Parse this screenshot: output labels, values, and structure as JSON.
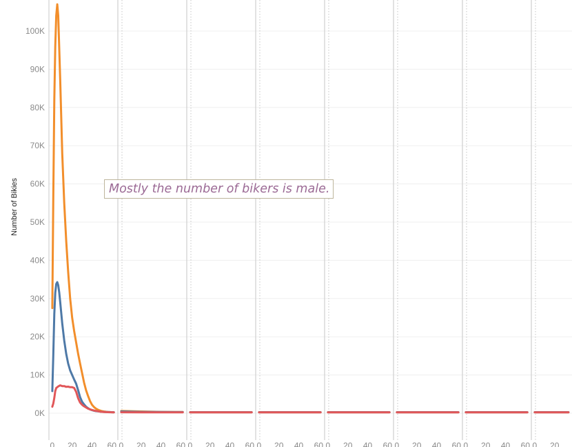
{
  "chart_data": {
    "type": "line",
    "ylabel": "Number of Bikies",
    "xlabel": "",
    "ylim": [
      -9000,
      107000
    ],
    "y_ticks": [
      {
        "value": 0,
        "label": "0K"
      },
      {
        "value": 10000,
        "label": "10K"
      },
      {
        "value": 20000,
        "label": "20K"
      },
      {
        "value": 30000,
        "label": "30K"
      },
      {
        "value": 40000,
        "label": "40K"
      },
      {
        "value": 50000,
        "label": "50K"
      },
      {
        "value": 60000,
        "label": "60K"
      },
      {
        "value": 70000,
        "label": "70K"
      },
      {
        "value": 80000,
        "label": "80K"
      },
      {
        "value": 90000,
        "label": "90K"
      },
      {
        "value": 100000,
        "label": "100K"
      }
    ],
    "x_ticks": [
      {
        "value": 0,
        "label": "0"
      },
      {
        "value": 20,
        "label": "20"
      },
      {
        "value": 40,
        "label": "40"
      },
      {
        "value": 60,
        "label": "60"
      }
    ],
    "panel_xlim": [
      -2,
      66
    ],
    "panel_count": 8,
    "grid": true,
    "annotation": "Mostly the number of bikers is male.",
    "series": [
      {
        "color": "#f28e2b",
        "panels": [
          [
            [
              0,
              27500
            ],
            [
              1,
              56000
            ],
            [
              2,
              82000
            ],
            [
              3,
              96000
            ],
            [
              4,
              104000
            ],
            [
              5,
              107000
            ],
            [
              6,
              104000
            ],
            [
              8,
              87000
            ],
            [
              10,
              68000
            ],
            [
              12,
              55000
            ],
            [
              14,
              45000
            ],
            [
              16,
              37000
            ],
            [
              18,
              30000
            ],
            [
              20,
              25000
            ],
            [
              22,
              21500
            ],
            [
              24,
              18500
            ],
            [
              26,
              15500
            ],
            [
              28,
              13000
            ],
            [
              30,
              10500
            ],
            [
              32,
              8000
            ],
            [
              34,
              6000
            ],
            [
              36,
              4500
            ],
            [
              38,
              3200
            ],
            [
              40,
              2200
            ],
            [
              42,
              1600
            ],
            [
              44,
              1200
            ],
            [
              46,
              900
            ],
            [
              48,
              700
            ],
            [
              50,
              550
            ],
            [
              52,
              450
            ],
            [
              54,
              380
            ],
            [
              56,
              320
            ],
            [
              58,
              280
            ],
            [
              60,
              250
            ],
            [
              62,
              220
            ]
          ],
          [
            [
              0,
              600
            ],
            [
              20,
              450
            ],
            [
              40,
              350
            ],
            [
              62,
              300
            ]
          ],
          [
            [
              0,
              250
            ],
            [
              20,
              250
            ],
            [
              40,
              250
            ],
            [
              62,
              250
            ]
          ],
          [
            [
              0,
              250
            ],
            [
              20,
              250
            ],
            [
              40,
              250
            ],
            [
              62,
              250
            ]
          ],
          [
            [
              0,
              250
            ],
            [
              20,
              250
            ],
            [
              40,
              250
            ],
            [
              62,
              250
            ]
          ],
          [
            [
              0,
              250
            ],
            [
              20,
              250
            ],
            [
              40,
              250
            ],
            [
              62,
              250
            ]
          ],
          [
            [
              0,
              250
            ],
            [
              20,
              250
            ],
            [
              40,
              250
            ],
            [
              62,
              250
            ]
          ],
          [
            [
              0,
              250
            ],
            [
              20,
              250
            ],
            [
              34,
              250
            ]
          ]
        ]
      },
      {
        "color": "#4e79a7",
        "panels": [
          [
            [
              0,
              5800
            ],
            [
              1,
              15000
            ],
            [
              2,
              26000
            ],
            [
              3,
              31500
            ],
            [
              4,
              33800
            ],
            [
              5,
              34300
            ],
            [
              6,
              33500
            ],
            [
              7,
              31500
            ],
            [
              8,
              29000
            ],
            [
              10,
              23500
            ],
            [
              12,
              19000
            ],
            [
              14,
              15500
            ],
            [
              16,
              13000
            ],
            [
              18,
              11200
            ],
            [
              20,
              10000
            ],
            [
              22,
              8800
            ],
            [
              24,
              7700
            ],
            [
              26,
              6000
            ],
            [
              28,
              4200
            ],
            [
              30,
              3000
            ],
            [
              32,
              2300
            ],
            [
              34,
              1700
            ],
            [
              36,
              1300
            ],
            [
              38,
              1000
            ],
            [
              40,
              800
            ],
            [
              42,
              650
            ],
            [
              44,
              550
            ],
            [
              46,
              480
            ],
            [
              48,
              420
            ],
            [
              50,
              380
            ],
            [
              52,
              340
            ],
            [
              54,
              320
            ],
            [
              56,
              300
            ],
            [
              58,
              280
            ],
            [
              60,
              260
            ],
            [
              62,
              250
            ]
          ],
          [
            [
              0,
              450
            ],
            [
              20,
              350
            ],
            [
              40,
              300
            ],
            [
              62,
              280
            ]
          ],
          [
            [
              0,
              250
            ],
            [
              20,
              250
            ],
            [
              40,
              250
            ],
            [
              62,
              250
            ]
          ],
          [
            [
              0,
              250
            ],
            [
              20,
              250
            ],
            [
              40,
              250
            ],
            [
              62,
              250
            ]
          ],
          [
            [
              0,
              250
            ],
            [
              20,
              250
            ],
            [
              40,
              250
            ],
            [
              62,
              250
            ]
          ],
          [
            [
              0,
              250
            ],
            [
              20,
              250
            ],
            [
              40,
              250
            ],
            [
              62,
              250
            ]
          ],
          [
            [
              0,
              250
            ],
            [
              20,
              250
            ],
            [
              40,
              250
            ],
            [
              62,
              250
            ]
          ],
          [
            [
              0,
              250
            ],
            [
              20,
              250
            ],
            [
              34,
              250
            ]
          ]
        ]
      },
      {
        "color": "#e15759",
        "panels": [
          [
            [
              0,
              1700
            ],
            [
              1,
              2500
            ],
            [
              2,
              4000
            ],
            [
              3,
              5800
            ],
            [
              4,
              6600
            ],
            [
              6,
              7000
            ],
            [
              8,
              7300
            ],
            [
              10,
              7100
            ],
            [
              12,
              7100
            ],
            [
              14,
              6900
            ],
            [
              16,
              6950
            ],
            [
              18,
              6800
            ],
            [
              20,
              6800
            ],
            [
              22,
              6600
            ],
            [
              24,
              5600
            ],
            [
              26,
              3900
            ],
            [
              28,
              2800
            ],
            [
              30,
              2200
            ],
            [
              32,
              1800
            ],
            [
              34,
              1500
            ],
            [
              36,
              1200
            ],
            [
              38,
              1000
            ],
            [
              40,
              850
            ],
            [
              42,
              700
            ],
            [
              44,
              600
            ],
            [
              46,
              500
            ],
            [
              48,
              420
            ],
            [
              50,
              360
            ],
            [
              52,
              320
            ],
            [
              54,
              290
            ],
            [
              56,
              270
            ],
            [
              58,
              255
            ],
            [
              60,
              245
            ],
            [
              62,
              240
            ]
          ],
          [
            [
              0,
              250
            ],
            [
              20,
              230
            ],
            [
              40,
              220
            ],
            [
              62,
              210
            ]
          ],
          [
            [
              0,
              210
            ],
            [
              20,
              210
            ],
            [
              40,
              210
            ],
            [
              62,
              210
            ]
          ],
          [
            [
              0,
              210
            ],
            [
              20,
              210
            ],
            [
              40,
              210
            ],
            [
              62,
              210
            ]
          ],
          [
            [
              0,
              210
            ],
            [
              20,
              210
            ],
            [
              40,
              210
            ],
            [
              62,
              210
            ]
          ],
          [
            [
              0,
              210
            ],
            [
              20,
              210
            ],
            [
              40,
              210
            ],
            [
              62,
              210
            ]
          ],
          [
            [
              0,
              210
            ],
            [
              20,
              210
            ],
            [
              40,
              210
            ],
            [
              62,
              210
            ]
          ],
          [
            [
              0,
              210
            ],
            [
              20,
              210
            ],
            [
              34,
              210
            ]
          ]
        ]
      }
    ]
  }
}
